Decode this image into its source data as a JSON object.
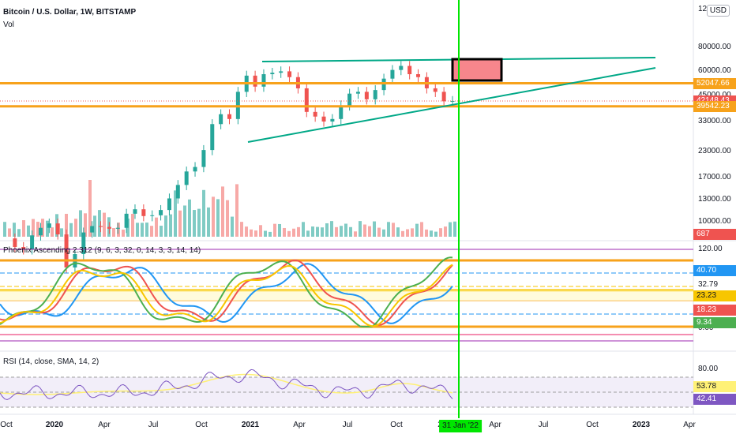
{
  "header": {
    "symbol": "Bitcoin / U.S. Dollar, 1W, BITSTAMP",
    "volume_label": "Vol",
    "currency_button": "USD"
  },
  "price_axis": {
    "top_tick": "12",
    "ticks": [
      "80000.00",
      "60000.00",
      "45000.00",
      "33000.00",
      "23000.00",
      "17000.00",
      "13000.00",
      "10000.00"
    ],
    "price_tags": [
      {
        "label": "52047.66",
        "color": "#f7a21b"
      },
      {
        "label": "42148.43",
        "color": "#ef5350"
      },
      {
        "label": "39542.23",
        "color": "#f7a21b"
      }
    ],
    "volume_tag": {
      "label": "687",
      "color": "#ef5350"
    }
  },
  "phoenix_panel": {
    "title": "Phoenix Ascending 2.312 (9, 6, 3, 32, 0, 14, 3, 3, 14, 14)",
    "ticks": [
      "120.00",
      "32.79",
      "0.00"
    ],
    "tags": [
      {
        "label": "40.70",
        "color": "#2196f3"
      },
      {
        "label": "23.23",
        "color": "#f7c600",
        "text_color": "#131722"
      },
      {
        "label": "18.23",
        "color": "#ef5350"
      },
      {
        "label": "9.34",
        "color": "#4caf50"
      }
    ]
  },
  "rsi_panel": {
    "title": "RSI (14, close, SMA, 14, 2)",
    "ticks": [
      "80.00"
    ],
    "tags": [
      {
        "label": "53.78",
        "color": "#fff176",
        "text_color": "#131722"
      },
      {
        "label": "42.41",
        "color": "#7e57c2"
      }
    ]
  },
  "time_axis": {
    "labels": [
      "Oct",
      "2020",
      "Apr",
      "Jul",
      "Oct",
      "2021",
      "Apr",
      "Jul",
      "Oct",
      "2",
      "Apr",
      "Jul",
      "Oct",
      "2023",
      "Apr"
    ],
    "bold_labels": [
      "2020",
      "2021",
      "2023"
    ],
    "crosshair_date": "31 Jan '22"
  },
  "colors": {
    "up": "#26a69a",
    "down": "#ef5350",
    "vol_up": "#80cbc4",
    "vol_down": "#f7a9a7",
    "support": "#f7a21b",
    "trendline": "#00a887",
    "crosshair": "#00e600",
    "target_box": "#f7868c"
  },
  "chart_data": [
    {
      "type": "candlestick",
      "title": "Bitcoin / U.S. Dollar, 1W, BITSTAMP",
      "y_scale": "log",
      "x": [
        "2019-10",
        "2020-01",
        "2020-04",
        "2020-07",
        "2020-10",
        "2021-01",
        "2021-04",
        "2021-07",
        "2021-10",
        "2022-01"
      ],
      "weekly_close_path": [
        8200,
        7400,
        7200,
        8500,
        9300,
        9800,
        8600,
        5800,
        6800,
        8800,
        9500,
        9400,
        9200,
        9300,
        11000,
        11600,
        10700,
        10800,
        11500,
        13200,
        15500,
        18200,
        19200,
        23500,
        32000,
        36000,
        34000,
        47000,
        57000,
        50000,
        58000,
        59000,
        60000,
        56000,
        49000,
        37000,
        35000,
        33000,
        34000,
        40000,
        46000,
        47000,
        43000,
        48000,
        55000,
        61000,
        64000,
        58000,
        56000,
        49000,
        47000,
        42000,
        42148
      ],
      "horizontal_levels": [
        52047.66,
        39542.23
      ],
      "trendlines": [
        {
          "name": "resistance",
          "from": [
            "2021-02",
            69000
          ],
          "to": [
            "2022-12",
            70000
          ]
        },
        {
          "name": "support",
          "from": [
            "2021-01",
            25000
          ],
          "to": [
            "2022-12",
            62000
          ]
        }
      ],
      "target_zone": {
        "x": [
          "2022-01-31",
          "2022-03"
        ],
        "y": [
          52047.66,
          70000
        ]
      },
      "last_price": 42148.43
    },
    {
      "type": "bar",
      "title": "Vol",
      "last_value": 687
    },
    {
      "type": "line",
      "title": "Phoenix Ascending 2.312 (9, 6, 3, 32, 0, 14, 3, 3, 14, 14)",
      "ylim": [
        0,
        120
      ],
      "series": [
        {
          "color": "#2196f3",
          "last": 40.7
        },
        {
          "color": "#f7c600",
          "last": 23.23
        },
        {
          "color": "#ef5350",
          "last": 18.23
        },
        {
          "color": "#4caf50",
          "last": 9.34
        }
      ]
    },
    {
      "type": "line",
      "title": "RSI (14, close, SMA, 14, 2)",
      "series": [
        {
          "color": "#fff176",
          "last": 53.78
        },
        {
          "color": "#7e57c2",
          "last": 42.41
        }
      ]
    }
  ]
}
